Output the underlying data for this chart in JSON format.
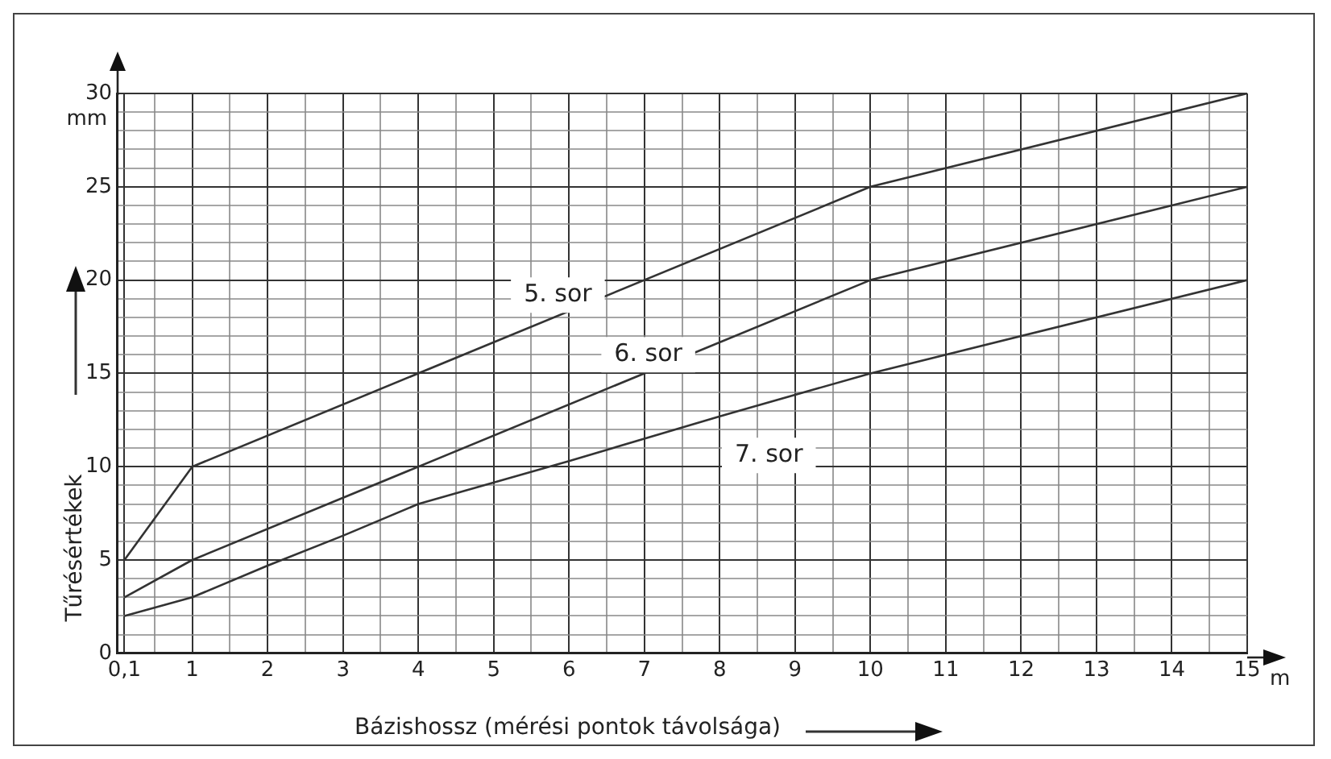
{
  "chart_data": {
    "type": "line",
    "xlabel": "Bázishossz (mérési pontok távolsága)",
    "ylabel": "Tűrésértékek",
    "annotations": [
      "mm",
      "m"
    ],
    "series": [
      {
        "name": "5. sor",
        "color": "#333333",
        "x": [
          0.1,
          1,
          10,
          15
        ],
        "values": [
          5,
          10,
          25,
          30
        ]
      },
      {
        "name": "6. sor",
        "color": "#333333",
        "x": [
          0.1,
          1,
          10,
          15
        ],
        "values": [
          3,
          5,
          20,
          25
        ]
      },
      {
        "name": "7. sor",
        "color": "#333333",
        "x": [
          0.1,
          1,
          2,
          3,
          4,
          6,
          8,
          10,
          15
        ],
        "values": [
          2,
          3,
          4.7,
          6.3,
          8,
          10.3,
          12.7,
          15,
          20
        ]
      }
    ],
    "xlim": [
      0,
      15
    ],
    "xticks": [
      {
        "value": 0.1,
        "label": "0,1"
      },
      {
        "value": 0.5,
        "label": null
      },
      1,
      {
        "value": 1.5,
        "label": null
      },
      2,
      {
        "value": 2.5,
        "label": null
      },
      3,
      {
        "value": 3.5,
        "label": null
      },
      4,
      {
        "value": 4.5,
        "label": null
      },
      5,
      {
        "value": 5.5,
        "label": null
      },
      6,
      {
        "value": 6.5,
        "label": null
      },
      7,
      {
        "value": 7.5,
        "label": null
      },
      8,
      {
        "value": 8.5,
        "label": null
      },
      9,
      {
        "value": 9.5,
        "label": null
      },
      10,
      {
        "value": 10.5,
        "label": null
      },
      11,
      {
        "value": 11.5,
        "label": null
      },
      12,
      {
        "value": 12.5,
        "label": null
      },
      13,
      {
        "value": 13.5,
        "label": null
      },
      14,
      {
        "value": 14.5,
        "label": null
      },
      15
    ],
    "ylim": [
      0,
      30
    ],
    "yticks": [
      0,
      {
        "value": 1,
        "label": null
      },
      {
        "value": 2,
        "label": null
      },
      {
        "value": 3,
        "label": null
      },
      {
        "value": 4,
        "label": null
      },
      5,
      {
        "value": 6,
        "label": null
      },
      {
        "value": 7,
        "label": null
      },
      {
        "value": 8,
        "label": null
      },
      {
        "value": 9,
        "label": null
      },
      10,
      {
        "value": 11,
        "label": null
      },
      {
        "value": 12,
        "label": null
      },
      {
        "value": 13,
        "label": null
      },
      {
        "value": 14,
        "label": null
      },
      15,
      {
        "value": 16,
        "label": null
      },
      {
        "value": 17,
        "label": null
      },
      {
        "value": 18,
        "label": null
      },
      {
        "value": 19,
        "label": null
      },
      20,
      {
        "value": 21,
        "label": null
      },
      {
        "value": 22,
        "label": null
      },
      {
        "value": 23,
        "label": null
      },
      {
        "value": 24,
        "label": null
      },
      25,
      {
        "value": 26,
        "label": null
      },
      {
        "value": 27,
        "label": null
      },
      {
        "value": 28,
        "label": null
      },
      {
        "value": 29,
        "label": null
      },
      30
    ],
    "grid": true,
    "legend": false,
    "marker": "none",
    "line_style": "solid"
  }
}
